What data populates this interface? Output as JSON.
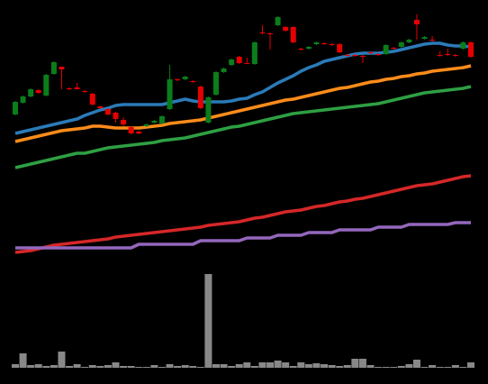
{
  "chart_data": {
    "type": "candlestick",
    "categories": [
      null,
      null,
      null,
      null,
      null,
      null,
      null,
      null,
      null,
      null,
      null,
      null,
      null,
      null,
      null,
      null,
      null,
      null,
      null,
      null,
      null,
      null,
      null,
      null,
      null,
      null,
      null,
      null,
      null,
      null,
      null,
      null,
      null,
      null,
      null,
      null,
      null,
      null,
      null,
      null,
      null,
      null,
      null,
      null,
      null,
      null,
      null,
      null,
      null,
      null,
      null,
      null,
      null,
      null,
      null,
      null,
      null,
      null,
      null,
      null
    ],
    "open": [
      173,
      186,
      193,
      200,
      194,
      218,
      226,
      202,
      203,
      199,
      196,
      182,
      179,
      175,
      167,
      159,
      154,
      160,
      164,
      163,
      179,
      212,
      212,
      210,
      204,
      164,
      195,
      220,
      228,
      237,
      230,
      229,
      264,
      263,
      272,
      270,
      270,
      246,
      246,
      251,
      252,
      251,
      251,
      239,
      239,
      238,
      242,
      240,
      240,
      247,
      248,
      253,
      278,
      257,
      256,
      239,
      240,
      239,
      246,
      253
    ],
    "high": [
      188,
      194,
      202,
      201,
      218,
      232,
      226,
      203,
      208,
      200,
      197,
      183,
      180,
      176,
      170,
      160,
      155,
      163,
      167,
      172,
      228,
      213,
      216,
      211,
      205,
      193,
      221,
      225,
      235,
      238,
      236,
      254,
      272,
      264,
      282,
      271,
      271,
      247,
      249,
      254,
      253,
      252,
      252,
      240,
      240,
      239,
      243,
      241,
      251,
      248,
      254,
      257,
      284,
      260,
      260,
      243,
      246,
      240,
      254,
      254
    ],
    "low": [
      172,
      185,
      192,
      196,
      193,
      217,
      201,
      200,
      201,
      197,
      183,
      179,
      172,
      164,
      160,
      151,
      151,
      159,
      163,
      162,
      178,
      210,
      211,
      208,
      179,
      163,
      194,
      219,
      227,
      229,
      229,
      228,
      262,
      245,
      271,
      265,
      252,
      244,
      245,
      250,
      250,
      249,
      241,
      237,
      237,
      230,
      240,
      238,
      239,
      245,
      247,
      252,
      256,
      256,
      254,
      237,
      238,
      237,
      245,
      236
    ],
    "close": [
      187,
      193,
      201,
      197,
      217,
      231,
      223,
      201,
      201,
      198,
      184,
      180,
      173,
      168,
      162,
      152,
      152,
      162,
      166,
      171,
      212,
      211,
      215,
      209,
      180,
      192,
      220,
      224,
      234,
      230,
      229,
      253,
      263,
      262,
      281,
      266,
      253,
      245,
      248,
      253,
      251,
      250,
      242,
      238,
      238,
      237,
      241,
      239,
      250,
      246,
      253,
      256,
      273,
      259,
      255,
      238,
      239,
      238,
      253,
      237
    ],
    "up_color": "#0b7d1b",
    "down_color": "#e60000",
    "ylim": [
      0,
      300
    ],
    "series": [
      {
        "color": "#2b7bb9",
        "values": [
          152,
          154,
          156,
          158,
          160,
          162,
          164,
          166,
          168,
          172,
          175,
          178,
          180,
          183,
          184,
          184,
          184,
          184,
          184,
          184,
          186,
          188,
          190,
          188,
          187,
          187,
          187,
          187,
          188,
          190,
          191,
          195,
          198,
          203,
          208,
          212,
          216,
          221,
          225,
          228,
          232,
          234,
          236,
          238,
          240,
          241,
          241,
          241,
          242,
          243,
          245,
          247,
          249,
          251,
          252,
          252,
          250,
          249,
          249,
          248
        ]
      },
      {
        "color": "#ff8c1a",
        "values": [
          143,
          145,
          147,
          149,
          151,
          153,
          155,
          156,
          157,
          158,
          160,
          160,
          159,
          158,
          158,
          158,
          158,
          159,
          160,
          161,
          163,
          164,
          165,
          166,
          167,
          169,
          171,
          173,
          175,
          177,
          179,
          181,
          183,
          185,
          187,
          189,
          190,
          192,
          194,
          196,
          198,
          200,
          202,
          203,
          205,
          207,
          209,
          210,
          212,
          213,
          215,
          216,
          218,
          219,
          221,
          222,
          223,
          224,
          225,
          227
        ]
      },
      {
        "color": "#2ea043",
        "values": [
          114,
          116,
          118,
          120,
          122,
          124,
          126,
          128,
          130,
          130,
          132,
          134,
          136,
          137,
          138,
          139,
          140,
          141,
          142,
          144,
          145,
          146,
          147,
          149,
          151,
          153,
          155,
          157,
          159,
          160,
          162,
          164,
          166,
          168,
          170,
          172,
          174,
          175,
          176,
          177,
          178,
          179,
          180,
          181,
          182,
          183,
          184,
          185,
          187,
          189,
          191,
          193,
          195,
          197,
          198,
          199,
          200,
          201,
          202,
          204
        ]
      },
      {
        "color": "#d62728",
        "values": [
          20,
          21,
          22,
          24,
          26,
          28,
          29,
          30,
          31,
          32,
          33,
          34,
          35,
          37,
          38,
          39,
          40,
          41,
          42,
          43,
          44,
          45,
          46,
          47,
          48,
          50,
          51,
          52,
          53,
          54,
          56,
          58,
          59,
          61,
          63,
          65,
          66,
          67,
          69,
          71,
          72,
          74,
          76,
          77,
          79,
          80,
          82,
          84,
          86,
          88,
          90,
          92,
          94,
          95,
          96,
          98,
          100,
          102,
          104,
          105
        ]
      },
      {
        "color": "#9467bd",
        "values": [
          25,
          25,
          25,
          25,
          25,
          25,
          25,
          25,
          25,
          25,
          25,
          25,
          25,
          25,
          25,
          25,
          29,
          29,
          29,
          29,
          29,
          29,
          29,
          29,
          33,
          33,
          33,
          33,
          33,
          33,
          36,
          36,
          36,
          36,
          39,
          39,
          39,
          39,
          42,
          42,
          42,
          42,
          45,
          45,
          45,
          45,
          45,
          48,
          48,
          48,
          48,
          51,
          51,
          51,
          51,
          51,
          51,
          53,
          53,
          53
        ]
      }
    ],
    "volume": [
      4,
      16,
      3,
      4,
      2,
      3,
      18,
      2,
      4,
      1,
      3,
      2,
      3,
      6,
      2,
      2,
      1,
      1,
      3,
      1,
      4,
      2,
      3,
      2,
      1,
      104,
      4,
      4,
      2,
      4,
      6,
      2,
      6,
      6,
      8,
      6,
      2,
      6,
      4,
      5,
      4,
      3,
      2,
      3,
      10,
      10,
      3,
      1,
      1,
      1,
      2,
      4,
      9,
      1,
      3,
      1,
      1,
      3,
      1,
      6
    ],
    "volume_color": "#888888",
    "volume_ylim": [
      0,
      110
    ]
  }
}
